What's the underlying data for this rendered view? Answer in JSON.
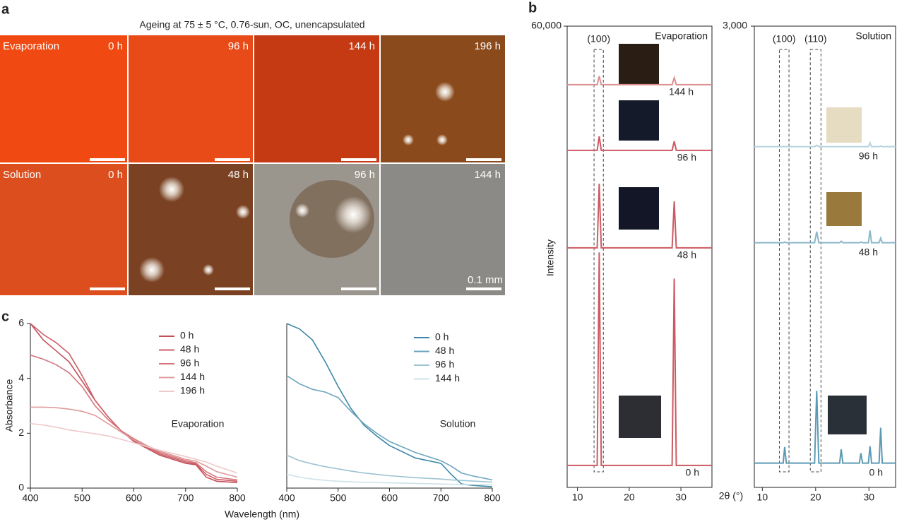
{
  "panel_labels": {
    "a": "a",
    "b": "b",
    "c": "c"
  },
  "panel_a": {
    "title": "Ageing at 75 ± 5 °C, 0.76-sun, OC, unencapsulated",
    "rows": [
      {
        "name": "Evaporation",
        "times": [
          "0 h",
          "96 h",
          "144 h",
          "196 h"
        ]
      },
      {
        "name": "Solution",
        "times": [
          "0 h",
          "48 h",
          "96 h",
          "144 h"
        ]
      }
    ],
    "scale_bar": "0.1 mm"
  },
  "chart_data": [
    {
      "type": "line",
      "title": "Evaporation",
      "x_label": "Wavelength (nm)",
      "y_label": "Absorbance",
      "x": [
        400,
        425,
        450,
        475,
        500,
        525,
        550,
        575,
        600,
        650,
        700,
        720,
        740,
        760,
        800
      ],
      "xlim": [
        400,
        800
      ],
      "xticks": [
        400,
        500,
        600,
        700,
        800
      ],
      "ylim": [
        0,
        6
      ],
      "yticks": [
        0,
        2,
        4,
        6
      ],
      "series": [
        {
          "name": "0 h",
          "color": "#c44f5a",
          "values": [
            6.0,
            5.4,
            5.0,
            4.6,
            3.9,
            3.2,
            2.6,
            2.1,
            1.7,
            1.2,
            0.9,
            0.85,
            0.4,
            0.25,
            0.2
          ]
        },
        {
          "name": "48 h",
          "color": "#cc5e67",
          "values": [
            6.0,
            5.6,
            5.3,
            4.9,
            4.1,
            3.2,
            2.6,
            2.1,
            1.75,
            1.25,
            0.95,
            0.88,
            0.5,
            0.32,
            0.25
          ]
        },
        {
          "name": "96 h",
          "color": "#d6767c",
          "values": [
            4.85,
            4.7,
            4.5,
            4.2,
            3.7,
            3.0,
            2.5,
            2.1,
            1.8,
            1.3,
            1.0,
            0.92,
            0.6,
            0.4,
            0.3
          ]
        },
        {
          "name": "144 h",
          "color": "#df9c9d",
          "values": [
            2.95,
            2.95,
            2.93,
            2.88,
            2.8,
            2.65,
            2.35,
            2.05,
            1.75,
            1.35,
            1.05,
            0.98,
            0.8,
            0.6,
            0.4
          ]
        },
        {
          "name": "196 h",
          "color": "#efcaca",
          "values": [
            2.35,
            2.3,
            2.22,
            2.12,
            2.05,
            1.98,
            1.9,
            1.78,
            1.65,
            1.38,
            1.15,
            1.05,
            0.95,
            0.8,
            0.55
          ]
        }
      ]
    },
    {
      "type": "line",
      "title": "Solution",
      "x": [
        400,
        425,
        450,
        475,
        500,
        525,
        550,
        575,
        600,
        650,
        700,
        720,
        740,
        760,
        800
      ],
      "xlim": [
        400,
        800
      ],
      "xticks": [
        400,
        500,
        600,
        700,
        800
      ],
      "ylim": [
        0,
        6
      ],
      "series": [
        {
          "name": "0 h",
          "color": "#3d88a6",
          "values": [
            6.0,
            5.8,
            5.4,
            4.6,
            3.7,
            2.9,
            2.3,
            1.9,
            1.55,
            1.1,
            0.9,
            0.5,
            0.15,
            0.1,
            0.05
          ]
        },
        {
          "name": "48 h",
          "color": "#6ea5bd",
          "values": [
            4.1,
            3.8,
            3.6,
            3.5,
            3.3,
            2.8,
            2.35,
            2.0,
            1.7,
            1.3,
            1.0,
            0.8,
            0.55,
            0.45,
            0.3
          ]
        },
        {
          "name": "96 h",
          "color": "#9dc3d2",
          "values": [
            1.2,
            1.0,
            0.88,
            0.78,
            0.7,
            0.62,
            0.55,
            0.5,
            0.45,
            0.38,
            0.33,
            0.3,
            0.28,
            0.26,
            0.22
          ]
        },
        {
          "name": "144 h",
          "color": "#cfe2ea",
          "values": [
            0.5,
            0.4,
            0.33,
            0.28,
            0.25,
            0.23,
            0.21,
            0.2,
            0.19,
            0.17,
            0.15,
            0.14,
            0.13,
            0.13,
            0.12
          ]
        }
      ]
    },
    {
      "type": "offset-line",
      "title": "Evaporation",
      "x_label": "2θ (°)",
      "y_label": "Intensity",
      "x": [
        8,
        13.8,
        14.2,
        14.6,
        20,
        28.3,
        28.7,
        29.1,
        36
      ],
      "xlim": [
        8,
        36
      ],
      "xticks": [
        10,
        20,
        30
      ],
      "ylim": [
        0,
        60000
      ],
      "yticks": [
        {
          "value": 60000,
          "label": "60,000"
        }
      ],
      "annotations": [
        {
          "label": "(100)",
          "x": [
            13.2,
            15
          ]
        }
      ],
      "series": [
        {
          "name": "0 h",
          "color": "#cd5a62",
          "values": [
            100,
            100,
            27800,
            100,
            100,
            100,
            24400,
            100,
            100
          ]
        },
        {
          "name": "48 h",
          "color": "#cd5a62",
          "values": [
            100,
            100,
            8450,
            100,
            100,
            100,
            6150,
            100,
            100
          ]
        },
        {
          "name": "96 h",
          "color": "#cd5a62",
          "values": [
            100,
            100,
            1930,
            100,
            100,
            100,
            1290,
            100,
            100
          ]
        },
        {
          "name": "144 h",
          "color": "#dc8f91",
          "values": [
            100,
            100,
            1200,
            100,
            100,
            100,
            1000,
            100,
            100
          ]
        }
      ]
    },
    {
      "type": "offset-line",
      "title": "Solution",
      "x": [
        8.5,
        13.9,
        14.2,
        14.5,
        19.8,
        20.2,
        20.6,
        24.5,
        24.8,
        25.1,
        28.2,
        28.5,
        28.8,
        29.9,
        30.2,
        30.5,
        31.9,
        32.2,
        32.5,
        35
      ],
      "xlim": [
        8.5,
        35
      ],
      "xticks": [
        10,
        20,
        30
      ],
      "ylim": [
        0,
        3000
      ],
      "yticks": [
        {
          "value": 3000,
          "label": "3,000"
        }
      ],
      "annotations": [
        {
          "label": "(100)",
          "x": [
            13.2,
            15
          ]
        },
        {
          "label": "(110)",
          "x": [
            19,
            21
          ]
        }
      ],
      "series": [
        {
          "name": "0 h",
          "color": "#5b9ab5",
          "values": [
            20,
            20,
            125,
            20,
            20,
            490,
            20,
            20,
            110,
            20,
            20,
            85,
            20,
            20,
            130,
            20,
            20,
            250,
            20,
            20
          ]
        },
        {
          "name": "48 h",
          "color": "#8ab7ca",
          "values": [
            20,
            20,
            25,
            20,
            20,
            92,
            20,
            20,
            30,
            20,
            20,
            25,
            20,
            20,
            100,
            20,
            20,
            50,
            20,
            20
          ]
        },
        {
          "name": "96 h",
          "color": "#b5d3df",
          "values": [
            20,
            20,
            20,
            20,
            20,
            30,
            20,
            20,
            20,
            20,
            20,
            20,
            20,
            20,
            45,
            20,
            20,
            25,
            20,
            20
          ]
        }
      ]
    }
  ]
}
